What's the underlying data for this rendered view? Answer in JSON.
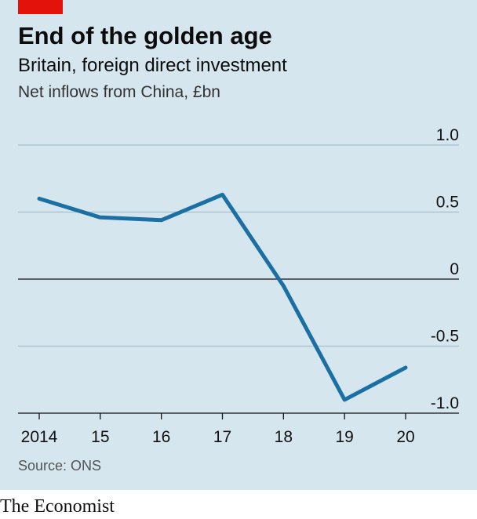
{
  "header": {
    "title": "End of the golden age",
    "subtitle": "Britain, foreign direct investment",
    "unit": "Net inflows from China, £bn"
  },
  "footer": {
    "source": "Source: ONS",
    "brand": "The Economist"
  },
  "colors": {
    "background": "#d6e6ef",
    "line": "#1a6fa3",
    "accent": "#e3120b"
  },
  "chart_data": {
    "type": "line",
    "x": [
      "2014",
      "15",
      "16",
      "17",
      "18",
      "19",
      "20"
    ],
    "series": [
      {
        "values": [
          0.6,
          0.46,
          0.44,
          0.63,
          -0.05,
          -0.9,
          -0.66
        ]
      }
    ],
    "y_ticks": [
      "1.0",
      "0.5",
      "0",
      "-0.5",
      "-1.0"
    ],
    "ylim": [
      -1.0,
      1.0
    ],
    "grid": true
  }
}
